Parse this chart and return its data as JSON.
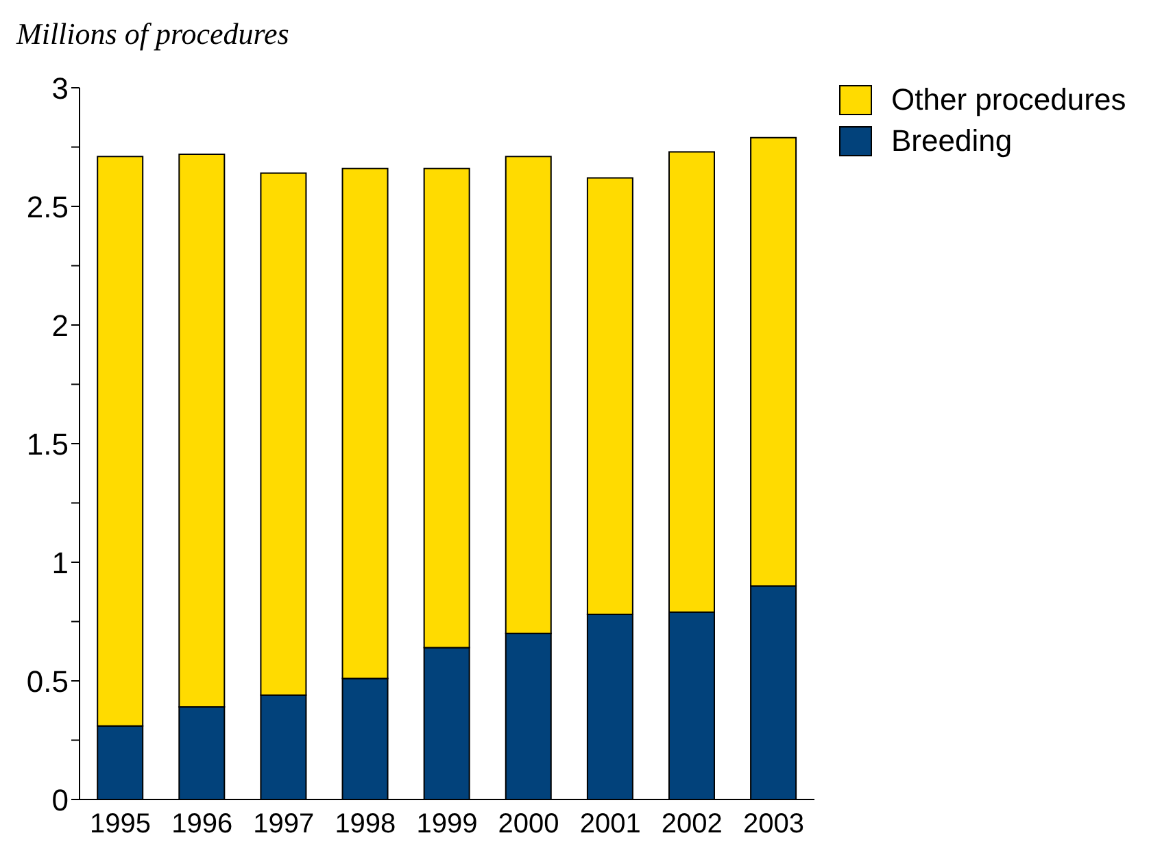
{
  "chart_data": {
    "type": "bar",
    "ylabel": "Millions of procedures",
    "stacked": true,
    "categories": [
      "1995",
      "1996",
      "1997",
      "1998",
      "1999",
      "2000",
      "2001",
      "2002",
      "2003"
    ],
    "series": [
      {
        "name": "Breeding",
        "color": "#02427b",
        "values": [
          0.31,
          0.39,
          0.44,
          0.51,
          0.64,
          0.7,
          0.78,
          0.79,
          0.9
        ]
      },
      {
        "name": "Other procedures",
        "color": "#ffdb00",
        "values": [
          2.4,
          2.33,
          2.2,
          2.15,
          2.02,
          2.01,
          1.84,
          1.94,
          1.89
        ]
      }
    ],
    "ylim": [
      0,
      3
    ],
    "yticks": [
      0,
      {
        "value": 0.25,
        "label": null
      },
      {
        "value": 0.5,
        "label": "0.5"
      },
      {
        "value": 0.75,
        "label": null
      },
      1,
      {
        "value": 1.25,
        "label": null
      },
      {
        "value": 1.5,
        "label": "1.5"
      },
      {
        "value": 1.75,
        "label": null
      },
      2,
      {
        "value": 2.25,
        "label": null
      },
      {
        "value": 2.5,
        "label": "2.5"
      },
      {
        "value": 2.75,
        "label": null
      },
      3
    ],
    "grid": false,
    "legend": "top right"
  }
}
